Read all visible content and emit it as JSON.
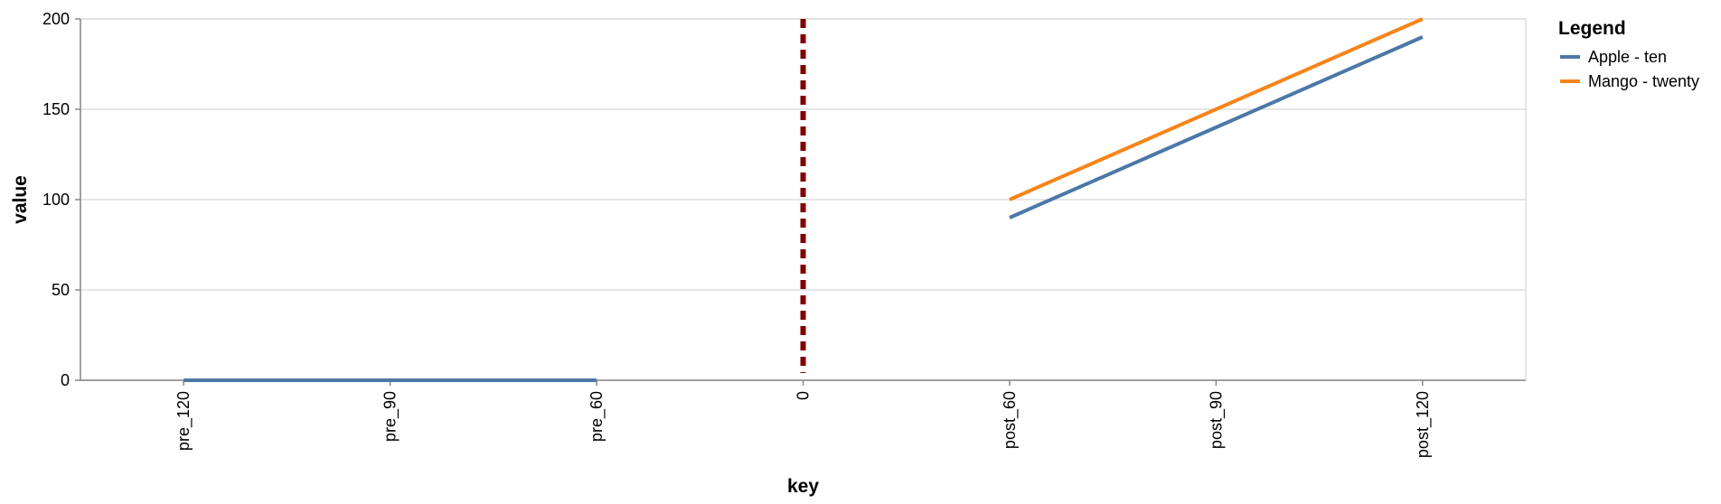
{
  "chart_data": {
    "type": "line",
    "categories": [
      "pre_120",
      "pre_90",
      "pre_60",
      "0",
      "post_60",
      "post_90",
      "post_120"
    ],
    "xlabel": "key",
    "ylabel": "value",
    "ylim": [
      0,
      200
    ],
    "yticks": [
      0,
      50,
      100,
      150,
      200
    ],
    "grid": true,
    "legend": {
      "title": "Legend",
      "position": "right"
    },
    "series": [
      {
        "name": "Apple - ten",
        "color": "#4c78a8",
        "points": [
          {
            "x": "pre_120",
            "y": 0
          },
          {
            "x": "pre_90",
            "y": 0
          },
          {
            "x": "pre_60",
            "y": 0
          },
          {
            "x": "post_60",
            "y": 90
          },
          {
            "x": "post_90",
            "y": 140
          },
          {
            "x": "post_120",
            "y": 190
          }
        ]
      },
      {
        "name": "Mango - twenty",
        "color": "#f58518",
        "points": [
          {
            "x": "post_60",
            "y": 100
          },
          {
            "x": "post_90",
            "y": 150
          },
          {
            "x": "post_120",
            "y": 200
          }
        ]
      }
    ],
    "reference_line": {
      "x": "0",
      "color": "#800000",
      "style": "dashed"
    }
  }
}
